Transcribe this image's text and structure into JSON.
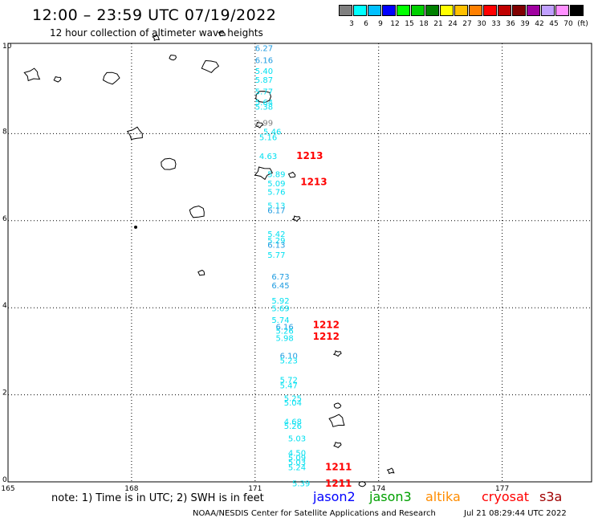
{
  "header": {
    "title": "12:00 – 23:59 UTC 07/19/2022",
    "subtitle": "12 hour collection of altimeter wave heights"
  },
  "colorbar": {
    "colors": [
      "#808080",
      "#00ffff",
      "#00c0ff",
      "#0000ff",
      "#00ff00",
      "#00d000",
      "#008000",
      "#ffff00",
      "#ffc000",
      "#ff8000",
      "#ff0000",
      "#c00000",
      "#800000",
      "#a000a0",
      "#c0a0ff",
      "#ff90ff",
      "#000000"
    ],
    "labels": [
      "3",
      "6",
      "9",
      "12",
      "15",
      "18",
      "21",
      "24",
      "27",
      "30",
      "33",
      "36",
      "39",
      "42",
      "45",
      "70",
      "(ft)"
    ]
  },
  "axes": {
    "x_ticks": [
      {
        "value": 165,
        "label": "165"
      },
      {
        "value": 168,
        "label": "168"
      },
      {
        "value": 171,
        "label": "171"
      },
      {
        "value": 174,
        "label": "174"
      },
      {
        "value": 177,
        "label": "177"
      }
    ],
    "y_ticks": [
      {
        "value": 0,
        "label": "0"
      },
      {
        "value": 2,
        "label": "2"
      },
      {
        "value": 4,
        "label": "4"
      },
      {
        "value": 6,
        "label": "6"
      },
      {
        "value": 8,
        "label": "8"
      },
      {
        "value": 10,
        "label": "10"
      }
    ],
    "lon_range": [
      165,
      179
    ],
    "lat_range": [
      0,
      10
    ]
  },
  "observations": [
    {
      "lon": 171.0,
      "lat": 9.9,
      "text": "6.27",
      "color": "#1e9be0"
    },
    {
      "lon": 171.0,
      "lat": 9.62,
      "text": "6.16",
      "color": "#1e9be0"
    },
    {
      "lon": 171.0,
      "lat": 9.37,
      "text": "5.40",
      "color": "#00e0f0"
    },
    {
      "lon": 171.0,
      "lat": 9.17,
      "text": "5.87",
      "color": "#00e0f0"
    },
    {
      "lon": 171.0,
      "lat": 8.9,
      "text": "5.77",
      "color": "#00e0f0"
    },
    {
      "lon": 171.0,
      "lat": 8.65,
      "text": "5.64",
      "color": "#00e0f0"
    },
    {
      "lon": 171.0,
      "lat": 8.55,
      "text": "5.38",
      "color": "#00e0f0"
    },
    {
      "lon": 171.0,
      "lat": 8.18,
      "text": "2.99",
      "color": "#808080"
    },
    {
      "lon": 171.2,
      "lat": 7.98,
      "text": "5.46",
      "color": "#00e0f0"
    },
    {
      "lon": 171.1,
      "lat": 7.85,
      "text": "5.16",
      "color": "#00e0f0"
    },
    {
      "lon": 171.1,
      "lat": 7.42,
      "text": "4.63",
      "color": "#00e0f0"
    },
    {
      "lon": 171.3,
      "lat": 7.0,
      "text": "5.89",
      "color": "#00e0f0"
    },
    {
      "lon": 171.3,
      "lat": 6.79,
      "text": "5.09",
      "color": "#00e0f0"
    },
    {
      "lon": 171.3,
      "lat": 6.6,
      "text": "5.76",
      "color": "#00e0f0"
    },
    {
      "lon": 171.3,
      "lat": 6.28,
      "text": "5.13",
      "color": "#00e0f0"
    },
    {
      "lon": 171.3,
      "lat": 6.17,
      "text": "6.17",
      "color": "#1e9be0"
    },
    {
      "lon": 171.3,
      "lat": 5.63,
      "text": "5.42",
      "color": "#00e0f0"
    },
    {
      "lon": 171.3,
      "lat": 5.48,
      "text": "5.29",
      "color": "#00e0f0"
    },
    {
      "lon": 171.3,
      "lat": 5.38,
      "text": "6.13",
      "color": "#1e9be0"
    },
    {
      "lon": 171.3,
      "lat": 5.15,
      "text": "5.77",
      "color": "#00e0f0"
    },
    {
      "lon": 171.4,
      "lat": 4.65,
      "text": "6.73",
      "color": "#1e9be0"
    },
    {
      "lon": 171.4,
      "lat": 4.45,
      "text": "6.45",
      "color": "#1e9be0"
    },
    {
      "lon": 171.4,
      "lat": 4.1,
      "text": "5.92",
      "color": "#00e0f0"
    },
    {
      "lon": 171.4,
      "lat": 3.92,
      "text": "5.69",
      "color": "#00e0f0"
    },
    {
      "lon": 171.4,
      "lat": 3.65,
      "text": "5.74",
      "color": "#00e0f0"
    },
    {
      "lon": 171.5,
      "lat": 3.5,
      "text": "6.16",
      "color": "#1e9be0"
    },
    {
      "lon": 171.5,
      "lat": 3.4,
      "text": "5.26",
      "color": "#00e0f0"
    },
    {
      "lon": 171.5,
      "lat": 3.24,
      "text": "5.98",
      "color": "#00e0f0"
    },
    {
      "lon": 171.6,
      "lat": 2.83,
      "text": "6.10",
      "color": "#1e9be0"
    },
    {
      "lon": 171.6,
      "lat": 2.72,
      "text": "5.23",
      "color": "#00e0f0"
    },
    {
      "lon": 171.6,
      "lat": 2.28,
      "text": "5.72",
      "color": "#00e0f0"
    },
    {
      "lon": 171.6,
      "lat": 2.15,
      "text": "5.47",
      "color": "#00e0f0"
    },
    {
      "lon": 171.7,
      "lat": 1.85,
      "text": "5.25",
      "color": "#00e0f0"
    },
    {
      "lon": 171.7,
      "lat": 1.75,
      "text": "5.04",
      "color": "#00e0f0"
    },
    {
      "lon": 171.7,
      "lat": 1.32,
      "text": "4.68",
      "color": "#00e0f0"
    },
    {
      "lon": 171.7,
      "lat": 1.22,
      "text": "5.26",
      "color": "#00e0f0"
    },
    {
      "lon": 171.8,
      "lat": 0.93,
      "text": "5.03",
      "color": "#00e0f0"
    },
    {
      "lon": 171.8,
      "lat": 0.6,
      "text": "4.50",
      "color": "#00e0f0"
    },
    {
      "lon": 171.8,
      "lat": 0.49,
      "text": "5.09",
      "color": "#00e0f0"
    },
    {
      "lon": 171.8,
      "lat": 0.39,
      "text": "5.03",
      "color": "#00e0f0"
    },
    {
      "lon": 171.8,
      "lat": 0.27,
      "text": "5.24",
      "color": "#00e0f0"
    },
    {
      "lon": 171.9,
      "lat": -0.1,
      "text": "5.39",
      "color": "#00e0f0"
    }
  ],
  "passes": [
    {
      "lon": 172.0,
      "lat": 7.42,
      "text": "1213"
    },
    {
      "lon": 172.1,
      "lat": 6.82,
      "text": "1213"
    },
    {
      "lon": 172.4,
      "lat": 3.53,
      "text": "1212"
    },
    {
      "lon": 172.4,
      "lat": 3.27,
      "text": "1212"
    },
    {
      "lon": 172.7,
      "lat": 0.27,
      "text": "1211"
    },
    {
      "lon": 172.7,
      "lat": -0.11,
      "text": "1211"
    }
  ],
  "islands": [
    {
      "lon": 165.6,
      "lat": 9.35,
      "kind": "atoll"
    },
    {
      "lon": 166.2,
      "lat": 9.25,
      "kind": "small"
    },
    {
      "lon": 167.5,
      "lat": 9.28,
      "kind": "atoll"
    },
    {
      "lon": 168.6,
      "lat": 10.2,
      "kind": "small"
    },
    {
      "lon": 169.0,
      "lat": 9.75,
      "kind": "small"
    },
    {
      "lon": 169.9,
      "lat": 9.55,
      "kind": "atoll"
    },
    {
      "lon": 170.2,
      "lat": 10.3,
      "kind": "small"
    },
    {
      "lon": 171.2,
      "lat": 8.85,
      "kind": "atoll"
    },
    {
      "lon": 171.1,
      "lat": 8.2,
      "kind": "small"
    },
    {
      "lon": 168.1,
      "lat": 8.0,
      "kind": "atoll"
    },
    {
      "lon": 168.9,
      "lat": 7.3,
      "kind": "atoll"
    },
    {
      "lon": 171.2,
      "lat": 7.1,
      "kind": "atoll"
    },
    {
      "lon": 171.9,
      "lat": 7.05,
      "kind": "small"
    },
    {
      "lon": 169.6,
      "lat": 6.2,
      "kind": "atoll"
    },
    {
      "lon": 172.0,
      "lat": 6.05,
      "kind": "small"
    },
    {
      "lon": 168.1,
      "lat": 5.85,
      "kind": "dot"
    },
    {
      "lon": 169.7,
      "lat": 4.8,
      "kind": "small"
    },
    {
      "lon": 173.0,
      "lat": 2.95,
      "kind": "small"
    },
    {
      "lon": 173.0,
      "lat": 1.75,
      "kind": "small"
    },
    {
      "lon": 173.0,
      "lat": 1.4,
      "kind": "atoll"
    },
    {
      "lon": 173.0,
      "lat": 0.85,
      "kind": "small"
    },
    {
      "lon": 173.6,
      "lat": -0.05,
      "kind": "small"
    },
    {
      "lon": 174.3,
      "lat": 0.25,
      "kind": "small"
    }
  ],
  "legend": {
    "note": "note: 1) Time is in UTC; 2) SWH is in feet",
    "satellites": [
      {
        "name": "jason2",
        "color": "#0000ff"
      },
      {
        "name": "jason3",
        "color": "#00a000"
      },
      {
        "name": "altika",
        "color": "#ff8c00"
      },
      {
        "name": "cryosat",
        "color": "#ff0000"
      },
      {
        "name": "s3a",
        "color": "#a00000"
      }
    ]
  },
  "footer": {
    "credit": "NOAA/NESDIS Center for Satellite Applications and Research",
    "timestamp": "Jul 21 08:29:44 UTC 2022"
  }
}
